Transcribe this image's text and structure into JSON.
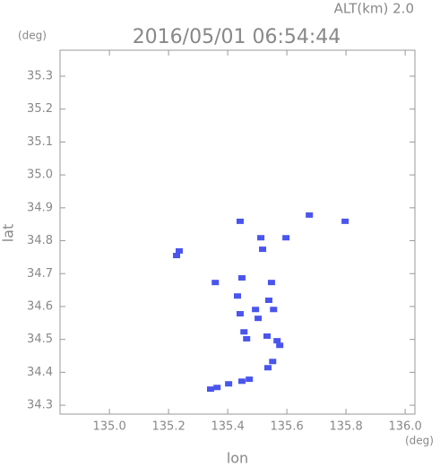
{
  "chart_data": {
    "type": "scatter",
    "title": "2016/05/01 06:54:44",
    "subtitle": "ALT(km) 2.0",
    "y_unit": "(deg)",
    "x_unit": "(deg)",
    "x_label": "lon",
    "y_label": "lat",
    "color": "#4a55ee",
    "xlim": [
      134.833,
      136.033
    ],
    "ylim": [
      34.273,
      35.379
    ],
    "xticks": [
      {
        "value": 135,
        "label": "135.0"
      },
      135.2,
      135.4,
      135.6,
      135.8,
      {
        "value": 136,
        "label": "136.0"
      }
    ],
    "yticks": [
      34.3,
      34.4,
      34.5,
      34.6,
      34.7,
      34.8,
      34.9,
      {
        "value": 35,
        "label": "35.0"
      },
      35.1,
      35.2,
      35.3
    ],
    "x": [
      135.227,
      135.236,
      135.442,
      135.512,
      135.597,
      135.518,
      135.676,
      135.797,
      135.358,
      135.448,
      135.433,
      135.442,
      135.455,
      135.464,
      135.494,
      135.503,
      135.539,
      135.548,
      135.555,
      135.533,
      135.567,
      135.576,
      135.552,
      135.536,
      135.473,
      135.448,
      135.403,
      135.364,
      135.342
    ],
    "y": [
      34.755,
      34.769,
      34.859,
      34.809,
      34.809,
      34.774,
      34.878,
      34.859,
      34.673,
      34.687,
      34.632,
      34.578,
      34.523,
      34.502,
      34.591,
      34.564,
      34.619,
      34.673,
      34.591,
      34.51,
      34.496,
      34.482,
      34.433,
      34.414,
      34.379,
      34.373,
      34.365,
      34.354,
      34.349
    ]
  }
}
